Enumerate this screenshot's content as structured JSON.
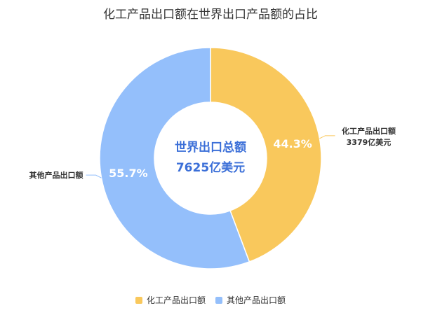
{
  "chart_data": {
    "type": "pie",
    "title": "化工产品出口额在世界出口产品额的占比",
    "center_label_line1": "世界出口总额",
    "center_label_line2": "7625亿美元",
    "slices": [
      {
        "name": "化工产品出口额",
        "value": 44.3,
        "value_label": "44.3%",
        "callout_line1": "化工产品出口额",
        "callout_line2": "3379亿美元",
        "color": "#f9c85c"
      },
      {
        "name": "其他产品出口额",
        "value": 55.7,
        "value_label": "55.7%",
        "callout_line1": "其他产品出口额",
        "callout_line2": "",
        "color": "#94bffb"
      }
    ],
    "legend": [
      "化工产品出口额",
      "其他产品出口额"
    ],
    "legend_position": "bottom",
    "center_label_color": "#3b6fd8"
  }
}
